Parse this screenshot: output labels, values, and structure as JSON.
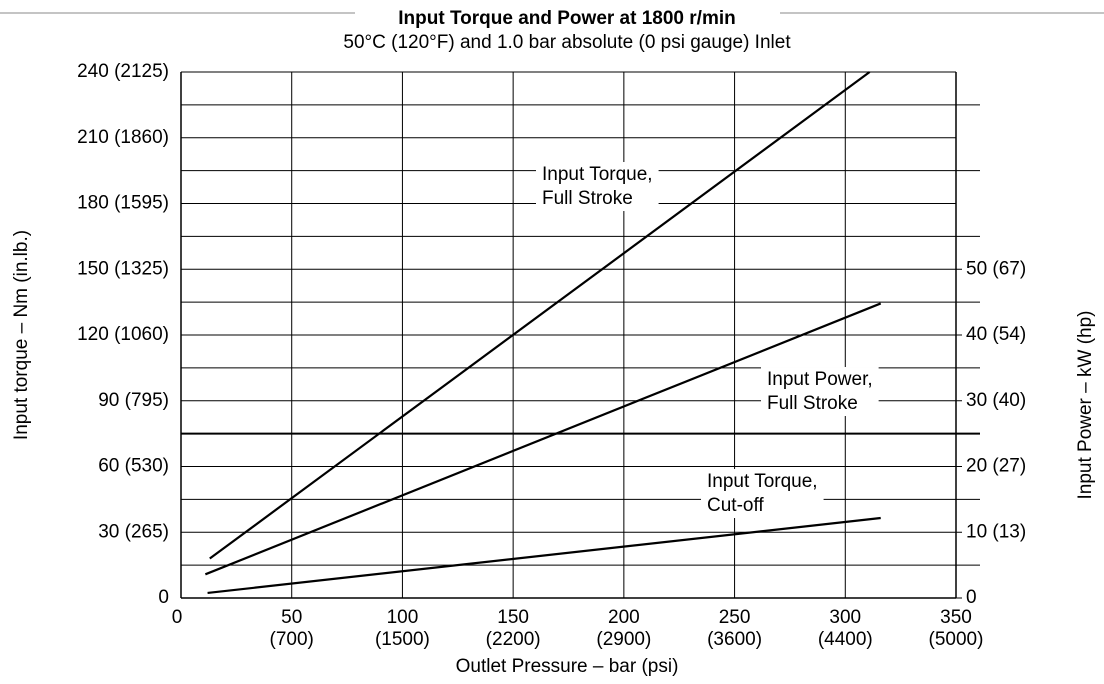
{
  "chart_data": {
    "type": "line",
    "title": "Input Torque and Power at 1800 r/min",
    "subtitle": "50°C (120°F) and 1.0 bar absolute (0 psi gauge) Inlet",
    "xlabel": "Outlet Pressure – bar (psi)",
    "ylabel": "Input torque – Nm (in.lb.)",
    "y2label": "Input Power – kW (hp)",
    "xlim": [
      0,
      350
    ],
    "xticks": [
      0,
      {
        "value": 50,
        "label": [
          "50",
          "(700)"
        ]
      },
      {
        "value": 100,
        "label": [
          "100",
          "(1500)"
        ]
      },
      {
        "value": 150,
        "label": [
          "150",
          "(2200)"
        ]
      },
      {
        "value": 200,
        "label": [
          "200",
          "(2900)"
        ]
      },
      {
        "value": 250,
        "label": [
          "250",
          "(3600)"
        ]
      },
      {
        "value": 300,
        "label": [
          "300",
          "(4400)"
        ]
      },
      {
        "value": 350,
        "label": [
          "350",
          "(5000)"
        ]
      }
    ],
    "ylim": [
      0,
      240
    ],
    "yticks": [
      0,
      {
        "value": 30,
        "label": "30 (265)"
      },
      {
        "value": 60,
        "label": "60 (530)"
      },
      {
        "value": 90,
        "label": "90 (795)"
      },
      {
        "value": 120,
        "label": "120 (1060)"
      },
      {
        "value": 150,
        "label": "150 (1325)"
      },
      {
        "value": 180,
        "label": "180 (1595)"
      },
      {
        "value": 210,
        "label": "210 (1860)"
      },
      {
        "value": 240,
        "label": "240 (2125)"
      }
    ],
    "y2lim": [
      0,
      80
    ],
    "y2ticks": [
      0,
      {
        "value": 10,
        "label": "10 (13)"
      },
      {
        "value": 20,
        "label": "20 (27)"
      },
      {
        "value": 30,
        "label": "30 (40)"
      },
      {
        "value": 40,
        "label": "40 (54)"
      },
      {
        "value": 50,
        "label": "50 (67)"
      }
    ],
    "y2minor_grid": [
      5,
      15,
      25,
      35,
      45,
      55,
      65,
      75
    ],
    "grid": true,
    "series": [
      {
        "label": [
          "Input Torque,",
          "Full Stroke"
        ],
        "color": "#000000",
        "x": [
          13,
          311
        ],
        "values": [
          18,
          240
        ]
      },
      {
        "label": [
          "Input Power,",
          "Full Stroke"
        ],
        "color": "#000000",
        "axis": "y2",
        "x": [
          11,
          316
        ],
        "values": [
          3.6,
          44.8
        ]
      },
      {
        "label": [
          "Input Torque,",
          "Cut-off"
        ],
        "color": "#000000",
        "x": [
          12,
          316
        ],
        "values": [
          2.3,
          36.5
        ]
      }
    ]
  }
}
